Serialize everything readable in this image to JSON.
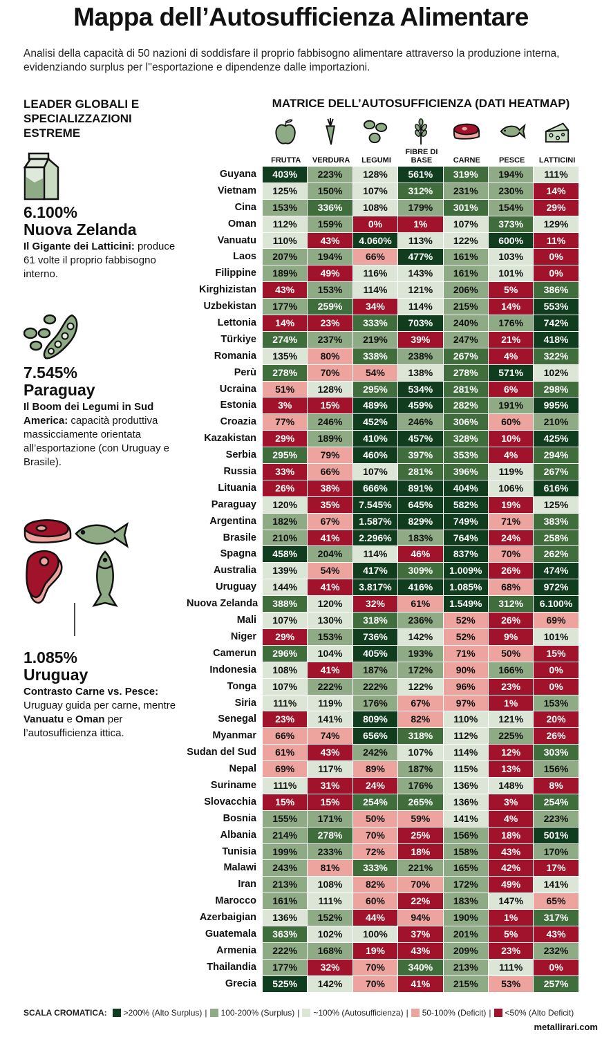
{
  "title": "Mappa dell’Autosufficienza Alimentare",
  "subtitle": "Analisi della capacità di 50 nazioni di soddisfare il proprio fabbisogno alimentare attraverso la produzione interna, evidenziando surplus per l''esportazione e dipendenze dalle importazioni.",
  "left_panel": {
    "heading": "LEADER GLOBALI E SPECIALIZZAZIONI ESTREME",
    "highlights": [
      {
        "icon": "milk-carton-icon",
        "value": "6.100%",
        "country": "Nuova Zelanda",
        "bold": "Il Gigante dei Latticini:",
        "text": " produce 61 volte il proprio fabbisogno interno."
      },
      {
        "icon": "beans-icon",
        "value": "7.545%",
        "country": "Paraguay",
        "bold": "Il Boom dei Legumi in Sud America:",
        "text": " capacità produttiva massicciamente orientata all’esportazione (con Uruguay e Brasile)."
      },
      {
        "icon": "meat-fish-icon",
        "value": "1.085%",
        "country": "Uruguay",
        "bold": "Contrasto Carne vs. Pesce:",
        "text": " Uruguay guida per carne, mentre ",
        "bold2": "Vanuatu",
        "text2": " e ",
        "bold3": "Oman",
        "text3": " per l’autosufficienza ittica."
      }
    ]
  },
  "matrix_heading": "MATRICE DELL’AUTOSUFFICIENZA (DATI HEATMAP)",
  "colors": {
    "alto_surplus": "#0f3d1e",
    "surplus_strong": "#3f6d3b",
    "surplus": "#8fab85",
    "autosufficienza": "#dbe6d6",
    "deficit": "#eda49f",
    "alto_deficit": "#a1132a"
  },
  "chart_data": {
    "type": "heatmap",
    "unit": "%",
    "columns": [
      {
        "label": "FRUTTA",
        "icon": "apple-icon"
      },
      {
        "label": "VERDURA",
        "icon": "carrot-icon"
      },
      {
        "label": "LEGUMI",
        "icon": "beans-icon"
      },
      {
        "label": "FIBRE DI BASE",
        "icon": "wheat-icon"
      },
      {
        "label": "CARNE",
        "icon": "steak-icon"
      },
      {
        "label": "PESCE",
        "icon": "fish-icon"
      },
      {
        "label": "LATTICINI",
        "icon": "cheese-icon"
      }
    ],
    "rows": [
      {
        "name": "Guyana",
        "values": [
          403,
          223,
          128,
          561,
          319,
          194,
          111
        ]
      },
      {
        "name": "Vietnam",
        "values": [
          125,
          150,
          107,
          312,
          231,
          230,
          14
        ]
      },
      {
        "name": "Cina",
        "values": [
          153,
          336,
          108,
          179,
          301,
          154,
          29
        ]
      },
      {
        "name": "Oman",
        "values": [
          112,
          159,
          0,
          1,
          107,
          373,
          129
        ]
      },
      {
        "name": "Vanuatu",
        "values": [
          110,
          43,
          4060,
          113,
          122,
          600,
          11
        ]
      },
      {
        "name": "Laos",
        "values": [
          207,
          194,
          66,
          477,
          161,
          103,
          0
        ]
      },
      {
        "name": "Filippine",
        "values": [
          189,
          49,
          116,
          143,
          161,
          101,
          0
        ]
      },
      {
        "name": "Kirghizistan",
        "values": [
          43,
          153,
          114,
          121,
          206,
          5,
          386
        ]
      },
      {
        "name": "Uzbekistan",
        "values": [
          177,
          259,
          34,
          114,
          215,
          14,
          553
        ]
      },
      {
        "name": "Lettonia",
        "values": [
          14,
          23,
          333,
          703,
          240,
          176,
          742
        ]
      },
      {
        "name": "Türkiye",
        "values": [
          274,
          237,
          219,
          39,
          247,
          21,
          418
        ]
      },
      {
        "name": "Romania",
        "values": [
          135,
          80,
          338,
          238,
          267,
          4,
          322
        ]
      },
      {
        "name": "Perù",
        "values": [
          278,
          70,
          54,
          138,
          278,
          571,
          102
        ]
      },
      {
        "name": "Ucraina",
        "values": [
          51,
          128,
          295,
          534,
          281,
          6,
          298
        ]
      },
      {
        "name": "Estonia",
        "values": [
          3,
          15,
          489,
          459,
          282,
          191,
          995
        ]
      },
      {
        "name": "Croazia",
        "values": [
          77,
          246,
          452,
          246,
          306,
          60,
          210
        ]
      },
      {
        "name": "Kazakistan",
        "values": [
          29,
          189,
          410,
          457,
          328,
          10,
          425
        ]
      },
      {
        "name": "Serbia",
        "values": [
          295,
          79,
          460,
          397,
          353,
          4,
          294
        ]
      },
      {
        "name": "Russia",
        "values": [
          33,
          66,
          107,
          281,
          396,
          119,
          267
        ]
      },
      {
        "name": "Lituania",
        "values": [
          26,
          38,
          666,
          891,
          404,
          106,
          616
        ]
      },
      {
        "name": "Paraguay",
        "values": [
          120,
          35,
          7545,
          645,
          582,
          19,
          125
        ]
      },
      {
        "name": "Argentina",
        "values": [
          182,
          67,
          1587,
          829,
          749,
          71,
          383
        ]
      },
      {
        "name": "Brasile",
        "values": [
          210,
          41,
          2296,
          183,
          764,
          24,
          258
        ]
      },
      {
        "name": "Spagna",
        "values": [
          458,
          204,
          114,
          46,
          837,
          70,
          262
        ]
      },
      {
        "name": "Australia",
        "values": [
          139,
          54,
          417,
          309,
          1009,
          26,
          474
        ]
      },
      {
        "name": "Uruguay",
        "values": [
          144,
          41,
          3817,
          416,
          1085,
          68,
          972
        ]
      },
      {
        "name": "Nuova Zelanda",
        "values": [
          388,
          120,
          32,
          61,
          1549,
          312,
          6100
        ]
      },
      {
        "name": "Mali",
        "values": [
          107,
          130,
          318,
          236,
          52,
          26,
          69
        ]
      },
      {
        "name": "Niger",
        "values": [
          29,
          153,
          736,
          142,
          52,
          9,
          101
        ]
      },
      {
        "name": "Camerun",
        "values": [
          296,
          104,
          405,
          193,
          71,
          50,
          15
        ]
      },
      {
        "name": "Indonesia",
        "values": [
          108,
          41,
          187,
          172,
          90,
          166,
          0
        ]
      },
      {
        "name": "Tonga",
        "values": [
          107,
          222,
          222,
          122,
          96,
          23,
          0
        ]
      },
      {
        "name": "Siria",
        "values": [
          111,
          119,
          176,
          67,
          97,
          1,
          153
        ]
      },
      {
        "name": "Senegal",
        "values": [
          23,
          141,
          809,
          82,
          110,
          121,
          20
        ]
      },
      {
        "name": "Myanmar",
        "values": [
          66,
          74,
          656,
          318,
          112,
          225,
          26
        ]
      },
      {
        "name": "Sudan del Sud",
        "values": [
          61,
          43,
          242,
          107,
          114,
          12,
          303
        ]
      },
      {
        "name": "Nepal",
        "values": [
          69,
          117,
          89,
          187,
          115,
          13,
          156
        ]
      },
      {
        "name": "Suriname",
        "values": [
          111,
          31,
          24,
          176,
          136,
          148,
          8
        ]
      },
      {
        "name": "Slovacchia",
        "values": [
          15,
          15,
          254,
          265,
          136,
          3,
          254
        ]
      },
      {
        "name": "Bosnia",
        "values": [
          155,
          171,
          50,
          59,
          141,
          4,
          223
        ]
      },
      {
        "name": "Albania",
        "values": [
          214,
          278,
          70,
          25,
          156,
          18,
          501
        ]
      },
      {
        "name": "Tunisia",
        "values": [
          199,
          233,
          72,
          18,
          158,
          43,
          170
        ]
      },
      {
        "name": "Malawi",
        "values": [
          243,
          81,
          333,
          221,
          165,
          42,
          17
        ]
      },
      {
        "name": "Iran",
        "values": [
          213,
          108,
          82,
          70,
          172,
          49,
          141
        ]
      },
      {
        "name": "Marocco",
        "values": [
          161,
          111,
          60,
          22,
          183,
          147,
          65
        ]
      },
      {
        "name": "Azerbaigian",
        "values": [
          136,
          152,
          44,
          94,
          190,
          1,
          317
        ]
      },
      {
        "name": "Guatemala",
        "values": [
          363,
          102,
          100,
          37,
          201,
          5,
          43
        ]
      },
      {
        "name": "Armenia",
        "values": [
          222,
          168,
          19,
          43,
          209,
          23,
          232
        ]
      },
      {
        "name": "Thailandia",
        "values": [
          177,
          32,
          70,
          340,
          213,
          111,
          0
        ]
      },
      {
        "name": "Grecia",
        "values": [
          525,
          142,
          70,
          41,
          215,
          53,
          257
        ]
      }
    ]
  },
  "legend": {
    "title": "SCALA CROMATICA:",
    "items": [
      {
        "label": ">200% (Alto Surplus)",
        "color": "#0f3d1e"
      },
      {
        "label": "100-200% (Surplus)",
        "color": "#8fab85"
      },
      {
        "label": "~100% (Autosufficienza)",
        "color": "#dbe6d6"
      },
      {
        "label": "50-100% (Deficit)",
        "color": "#eda49f"
      },
      {
        "label": "<50% (Alto Deficit)",
        "color": "#a1132a"
      }
    ],
    "separator": "|"
  },
  "credit": "metallirari.com"
}
